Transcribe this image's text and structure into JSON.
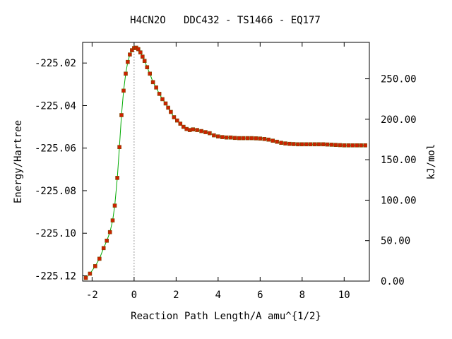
{
  "chart_data": {
    "type": "line",
    "title": "H4CN2O   DDC432 - TS1466 - EQ177",
    "xlabel": "Reaction Path Length/A amu^{1/2}",
    "ylabel": "Energy/Hartree",
    "y2label": "kJ/mol",
    "xlim": [
      -2.45,
      11.2
    ],
    "ylim": [
      -225.1225,
      -225.0103
    ],
    "y2lim": [
      0,
      295
    ],
    "x_ticks": [
      "-2",
      "0",
      "2",
      "4",
      "6",
      "8",
      "10"
    ],
    "x_tick_values": [
      -2,
      0,
      2,
      4,
      6,
      8,
      10
    ],
    "y_ticks": [
      "-225.02",
      "-225.04",
      "-225.06",
      "-225.08",
      "-225.10",
      "-225.12"
    ],
    "y_tick_values": [
      -225.02,
      -225.04,
      -225.06,
      -225.08,
      -225.1,
      -225.12
    ],
    "y2_ticks": [
      "250.00",
      "200.00",
      "150.00",
      "100.00",
      "50.00",
      "0.00"
    ],
    "y2_tick_values": [
      250,
      200,
      150,
      100,
      50,
      0
    ],
    "ts_marker_x": 0,
    "grid": false,
    "legend": "none",
    "line_color": "#00aa00",
    "marker_color": "#cc2200",
    "marker_edge_color": "#7a4a00",
    "x": [
      -2.3,
      -2.1,
      -1.85,
      -1.65,
      -1.45,
      -1.3,
      -1.15,
      -1.02,
      -0.92,
      -0.8,
      -0.7,
      -0.6,
      -0.5,
      -0.4,
      -0.3,
      -0.2,
      -0.1,
      0.0,
      0.1,
      0.2,
      0.3,
      0.4,
      0.5,
      0.62,
      0.75,
      0.9,
      1.05,
      1.2,
      1.35,
      1.5,
      1.62,
      1.75,
      1.9,
      2.05,
      2.2,
      2.35,
      2.5,
      2.65,
      2.8,
      3.0,
      3.2,
      3.4,
      3.6,
      3.8,
      4.0,
      4.2,
      4.4,
      4.6,
      4.8,
      5.0,
      5.2,
      5.4,
      5.6,
      5.8,
      6.0,
      6.2,
      6.4,
      6.6,
      6.8,
      7.0,
      7.2,
      7.4,
      7.6,
      7.8,
      8.0,
      8.2,
      8.4,
      8.6,
      8.8,
      9.0,
      9.2,
      9.4,
      9.6,
      9.8,
      10.0,
      10.2,
      10.4,
      10.6,
      10.8,
      11.0
    ],
    "y": [
      -225.121,
      -225.119,
      -225.1155,
      -225.112,
      -225.107,
      -225.1035,
      -225.0995,
      -225.094,
      -225.087,
      -225.074,
      -225.0595,
      -225.0445,
      -225.033,
      -225.025,
      -225.0195,
      -225.016,
      -225.014,
      -225.013,
      -225.0128,
      -225.0135,
      -225.015,
      -225.017,
      -225.019,
      -225.022,
      -225.025,
      -225.029,
      -225.0315,
      -225.0345,
      -225.037,
      -225.039,
      -225.041,
      -225.043,
      -225.0455,
      -225.047,
      -225.0485,
      -225.05,
      -225.051,
      -225.0515,
      -225.0512,
      -225.0515,
      -225.052,
      -225.0525,
      -225.053,
      -225.054,
      -225.0545,
      -225.0548,
      -225.055,
      -225.055,
      -225.0552,
      -225.0553,
      -225.0553,
      -225.0553,
      -225.0553,
      -225.0554,
      -225.0555,
      -225.0557,
      -225.056,
      -225.0565,
      -225.057,
      -225.0575,
      -225.0578,
      -225.058,
      -225.0581,
      -225.0582,
      -225.0582,
      -225.0582,
      -225.0582,
      -225.0582,
      -225.0582,
      -225.0582,
      -225.0583,
      -225.0584,
      -225.0585,
      -225.0586,
      -225.0587,
      -225.0587,
      -225.0587,
      -225.0587,
      -225.0587,
      -225.0587
    ]
  }
}
